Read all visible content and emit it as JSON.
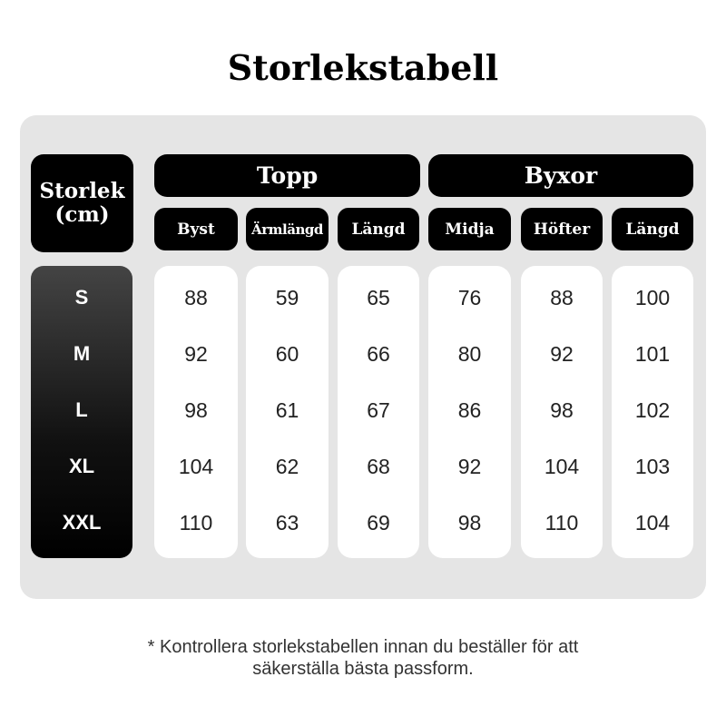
{
  "title": "Storlekstabell",
  "size_header": "Storlek (cm)",
  "groups": [
    {
      "label": "Topp"
    },
    {
      "label": "Byxor"
    }
  ],
  "columns": [
    {
      "label": "Byst"
    },
    {
      "label": "Ärmlängd"
    },
    {
      "label": "Längd"
    },
    {
      "label": "Midja"
    },
    {
      "label": "Höfter"
    },
    {
      "label": "Längd"
    }
  ],
  "sizes": [
    "S",
    "M",
    "L",
    "XL",
    "XXL"
  ],
  "values": [
    [
      "88",
      "92",
      "98",
      "104",
      "110"
    ],
    [
      "59",
      "60",
      "61",
      "62",
      "63"
    ],
    [
      "65",
      "66",
      "67",
      "68",
      "69"
    ],
    [
      "76",
      "80",
      "86",
      "92",
      "98"
    ],
    [
      "88",
      "92",
      "98",
      "104",
      "110"
    ],
    [
      "100",
      "101",
      "102",
      "103",
      "104"
    ]
  ],
  "note_line1": "* Kontrollera storlekstabellen innan du beställer för att",
  "note_line2": "säkerställa bästa passform."
}
